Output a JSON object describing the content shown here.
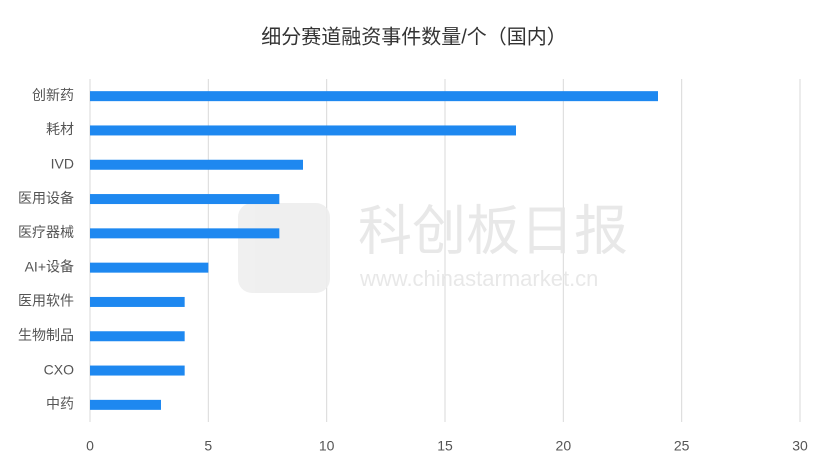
{
  "chart_data": {
    "type": "hbar",
    "title": "细分赛道融资事件数量/个（国内）",
    "categories": [
      "创新药",
      "耗材",
      "IVD",
      "医用设备",
      "医疗器械",
      "AI+设备",
      "医用软件",
      "生物制品",
      "CXO",
      "中药"
    ],
    "values": [
      24,
      18,
      9,
      8,
      8,
      5,
      4,
      4,
      4,
      3
    ],
    "color": "#1e88f0",
    "xlim": [
      0,
      30
    ],
    "xticks": [
      0,
      5,
      10,
      15,
      20,
      25,
      30
    ],
    "grid": true
  },
  "watermark": {
    "name": "科创板日报",
    "url": "www.chinastarmarket.cn"
  }
}
